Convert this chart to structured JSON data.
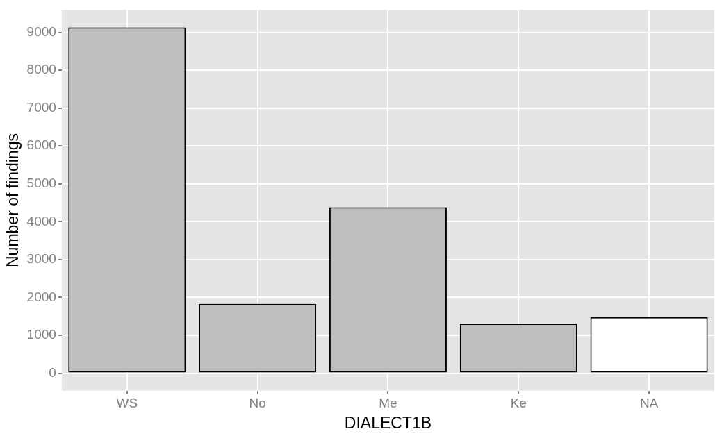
{
  "chart_data": {
    "type": "bar",
    "xlabel": "DIALECT1B",
    "ylabel": "Number of findings",
    "categories": [
      "WS",
      "No",
      "Me",
      "Ke",
      "NA"
    ],
    "values": [
      9130,
      1830,
      4380,
      1310,
      1480
    ],
    "colors": [
      "#bebebe",
      "#bebebe",
      "#bebebe",
      "#bebebe",
      "#ffffff"
    ],
    "ylim": [
      -460,
      9590
    ],
    "yticks": [
      0,
      1000,
      2000,
      3000,
      4000,
      5000,
      6000,
      7000,
      8000,
      9000
    ],
    "grid": true,
    "legend": false
  }
}
